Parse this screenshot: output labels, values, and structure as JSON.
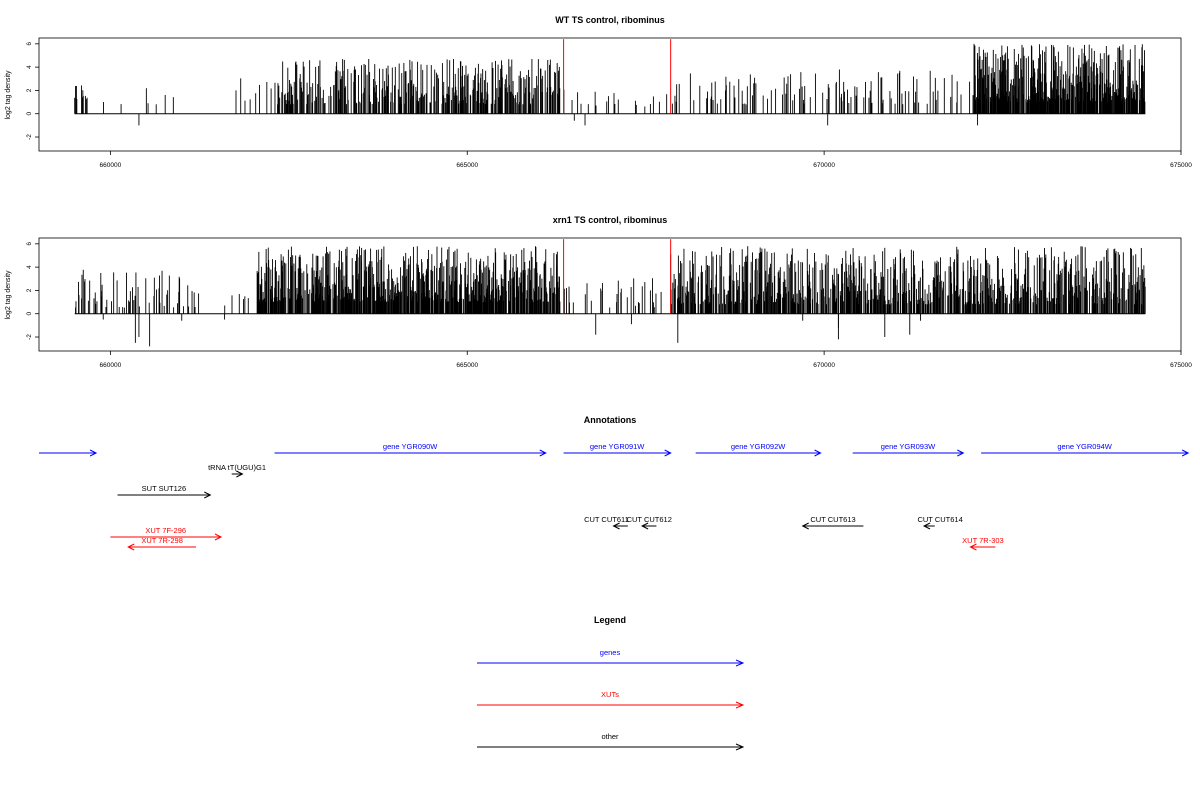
{
  "chart_data": [
    {
      "type": "bar",
      "title": "WT TS control, ribominus",
      "ylabel": "log2 tag density",
      "xlim": [
        659000,
        675000
      ],
      "ylim": [
        -3.2,
        6.5
      ],
      "x_ticks": [
        "660000",
        "665000",
        "670000",
        "675000"
      ],
      "y_ticks": [
        "-2",
        "0",
        "2",
        "4",
        "6"
      ],
      "x_range_covered": [
        659500,
        674500
      ],
      "markers": [
        666350,
        667850
      ],
      "marker_color": "#ff0000",
      "bar_color": "#000000",
      "seed": 11,
      "regions": [
        {
          "from": 659500,
          "to": 659700,
          "density": 0.25,
          "lo": 1.0,
          "hi": 3.2
        },
        {
          "from": 659700,
          "to": 661000,
          "density": 0.03,
          "lo": 0.8,
          "hi": 2.2
        },
        {
          "from": 661700,
          "to": 662300,
          "density": 0.08,
          "lo": 1.0,
          "hi": 3.4
        },
        {
          "from": 662300,
          "to": 666300,
          "density": 0.5,
          "lo": 0.8,
          "hi": 4.7
        },
        {
          "from": 666300,
          "to": 667850,
          "density": 0.06,
          "lo": 0.6,
          "hi": 2.3
        },
        {
          "from": 667850,
          "to": 672100,
          "density": 0.18,
          "lo": 0.8,
          "hi": 3.8
        },
        {
          "from": 672100,
          "to": 674500,
          "density": 0.85,
          "lo": 1.0,
          "hi": 6.0
        }
      ],
      "negatives": [
        {
          "x": 660400,
          "y": -1.0
        },
        {
          "x": 666500,
          "y": -0.6
        },
        {
          "x": 666650,
          "y": -1.0
        },
        {
          "x": 670050,
          "y": -1.0
        },
        {
          "x": 672150,
          "y": -1.0
        }
      ]
    },
    {
      "type": "bar",
      "title": "xrn1 TS control, ribominus",
      "ylabel": "log2 tag density",
      "xlim": [
        659000,
        675000
      ],
      "ylim": [
        -3.2,
        6.5
      ],
      "x_ticks": [
        "660000",
        "665000",
        "670000",
        "675000"
      ],
      "y_ticks": [
        "-2",
        "0",
        "2",
        "4",
        "6"
      ],
      "x_range_covered": [
        659500,
        674500
      ],
      "markers": [
        666350,
        667850
      ],
      "marker_color": "#ff0000",
      "bar_color": "#000000",
      "seed": 37,
      "regions": [
        {
          "from": 659500,
          "to": 661200,
          "density": 0.2,
          "lo": 0.5,
          "hi": 3.8
        },
        {
          "from": 661200,
          "to": 662050,
          "density": 0.04,
          "lo": 0.5,
          "hi": 2.0
        },
        {
          "from": 662050,
          "to": 666300,
          "density": 0.75,
          "lo": 1.0,
          "hi": 5.8
        },
        {
          "from": 666300,
          "to": 667850,
          "density": 0.12,
          "lo": 0.5,
          "hi": 3.6
        },
        {
          "from": 667850,
          "to": 674500,
          "density": 0.6,
          "lo": 0.8,
          "hi": 5.8
        }
      ],
      "negatives": [
        {
          "x": 659900,
          "y": -0.5
        },
        {
          "x": 660350,
          "y": -2.5
        },
        {
          "x": 660400,
          "y": -2.0
        },
        {
          "x": 660550,
          "y": -2.8
        },
        {
          "x": 661000,
          "y": -0.6
        },
        {
          "x": 661600,
          "y": -0.5
        },
        {
          "x": 666800,
          "y": -1.8
        },
        {
          "x": 667300,
          "y": -0.9
        },
        {
          "x": 667950,
          "y": -2.5
        },
        {
          "x": 669700,
          "y": -0.6
        },
        {
          "x": 670200,
          "y": -1.2
        },
        {
          "x": 670200,
          "y": -2.2
        },
        {
          "x": 670850,
          "y": -2.0
        },
        {
          "x": 671200,
          "y": -1.8
        },
        {
          "x": 671350,
          "y": -0.6
        }
      ]
    }
  ],
  "annotations": {
    "title": "Annotations",
    "items": [
      {
        "label": "",
        "from": 659000,
        "to": 659800,
        "dir": 1,
        "color": "#0000ff",
        "row": 0
      },
      {
        "label": "gene YGR090W",
        "from": 662300,
        "to": 666100,
        "dir": 1,
        "color": "#0000ff",
        "row": 0
      },
      {
        "label": "gene YGR091W",
        "from": 666350,
        "to": 667850,
        "dir": 1,
        "color": "#0000ff",
        "row": 0
      },
      {
        "label": "gene YGR092W",
        "from": 668200,
        "to": 669950,
        "dir": 1,
        "color": "#0000ff",
        "row": 0
      },
      {
        "label": "gene YGR093W",
        "from": 670400,
        "to": 671950,
        "dir": 1,
        "color": "#0000ff",
        "row": 0
      },
      {
        "label": "gene YGR094W",
        "from": 672200,
        "to": 675100,
        "dir": 1,
        "color": "#0000ff",
        "row": 0
      },
      {
        "label": "tRNA tT(UGU)G1",
        "from": 661700,
        "to": 661850,
        "dir": 1,
        "color": "#000000",
        "row": 1
      },
      {
        "label": "SUT SUT126",
        "from": 660100,
        "to": 661400,
        "dir": 1,
        "color": "#000000",
        "row": 2
      },
      {
        "label": "CUT CUT611",
        "from": 667050,
        "to": 667250,
        "dir": -1,
        "color": "#000000",
        "row": 3,
        "label_offset": -200
      },
      {
        "label": "CUT CUT612",
        "from": 667450,
        "to": 667650,
        "dir": -1,
        "color": "#000000",
        "row": 3
      },
      {
        "label": "CUT CUT613",
        "from": 669700,
        "to": 670550,
        "dir": -1,
        "color": "#000000",
        "row": 3
      },
      {
        "label": "CUT CUT614",
        "from": 671400,
        "to": 671550,
        "dir": -1,
        "color": "#000000",
        "row": 3,
        "label_offset": 150
      },
      {
        "label": "XUT 7F-296",
        "from": 660000,
        "to": 661550,
        "dir": 1,
        "color": "#ff0000",
        "row": 4
      },
      {
        "label": "XUT 7R-298",
        "from": 660250,
        "to": 661200,
        "dir": -1,
        "color": "#ff0000",
        "row": 5
      },
      {
        "label": "XUT 7R-303",
        "from": 672050,
        "to": 672400,
        "dir": -1,
        "color": "#ff0000",
        "row": 5,
        "label_offset": 0
      }
    ]
  },
  "legend": {
    "title": "Legend",
    "items": [
      {
        "label": "genes",
        "color": "#0000ff"
      },
      {
        "label": "XUTs",
        "color": "#ff0000"
      },
      {
        "label": "other",
        "color": "#000000"
      }
    ]
  }
}
